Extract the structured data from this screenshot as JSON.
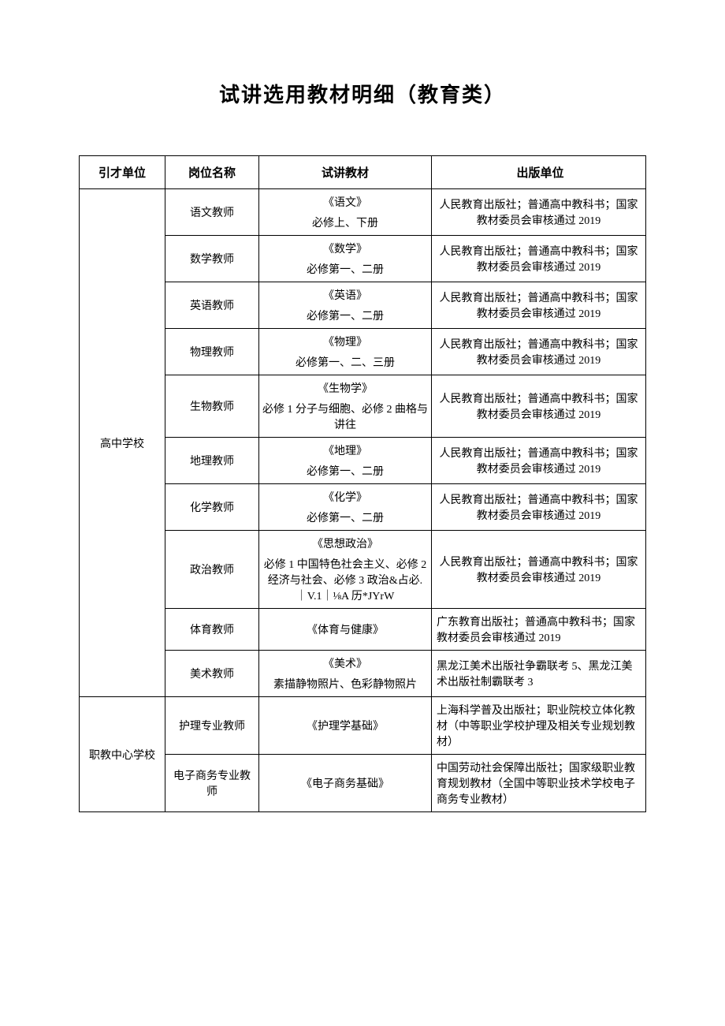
{
  "title": "试讲选用教材明细（教育类）",
  "headers": {
    "unit": "引才单位",
    "position": "岗位名称",
    "material": "试讲教材",
    "publisher": "出版单位"
  },
  "units": {
    "highschool": "高中学校",
    "vocational": "职教中心学校"
  },
  "rows": [
    {
      "position": "语文教师",
      "material_title": "《语文》",
      "material_sub": "必修上、下册",
      "publisher": "人民教育出版社；普通高中教科书；国家教材委员会审核通过 2019"
    },
    {
      "position": "数学教师",
      "material_title": "《数学》",
      "material_sub": "必修第一、二册",
      "publisher": "人民教育出版社；普通高中教科书；国家教材委员会审核通过 2019"
    },
    {
      "position": "英语教师",
      "material_title": "《英语》",
      "material_sub": "必修第一、二册",
      "publisher": "人民教育出版社；普通高中教科书；国家教材委员会审核通过 2019"
    },
    {
      "position": "物理教师",
      "material_title": "《物理》",
      "material_sub": "必修第一、二、三册",
      "publisher": "人民教育出版社；普通高中教科书；国家教材委员会审核通过 2019"
    },
    {
      "position": "生物教师",
      "material_title": "《生物学》",
      "material_sub": "必修 1 分子与细胞、必修 2 曲格与讲往",
      "publisher": "人民教育出版社；普通高中教科书；国家教材委员会审核通过 2019"
    },
    {
      "position": "地理教师",
      "material_title": "《地理》",
      "material_sub": "必修第一、二册",
      "publisher": "人民教育出版社；普通高中教科书；国家教材委员会审核通过 2019"
    },
    {
      "position": "化学教师",
      "material_title": "《化学》",
      "material_sub": "必修第一、二册",
      "publisher": "人民教育出版社；普通高中教科书；国家教材委员会审核通过 2019"
    },
    {
      "position": "政治教师",
      "material_title": "《思想政治》",
      "material_sub": "必修 1 中国特色社会主义、必修 2 经济与社会、必修 3 政治&占必.｜V.1｜⅛A 历*JYrW",
      "publisher": "人民教育出版社；普通高中教科书；国家教材委员会审核通过 2019"
    },
    {
      "position": "体育教师",
      "material_title": "《体育与健康》",
      "material_sub": "",
      "publisher": "广东教育出版社；普通高中教科书；国家教材委员会审核通过 2019"
    },
    {
      "position": "美术教师",
      "material_title": "《美术》",
      "material_sub": "素描静物照片、色彩静物照片",
      "publisher": "黑龙江美术出版社争霸联考 5、黑龙江美术出版社制霸联考 3"
    },
    {
      "position": "护理专业教师",
      "material_title": "《护理学基础》",
      "material_sub": "",
      "publisher": "上海科学普及出版社；职业院校立体化教材（中等职业学校护理及相关专业规划教材）"
    },
    {
      "position": "电子商务专业教师",
      "material_title": "《电子商务基础》",
      "material_sub": "",
      "publisher": "中国劳动社会保障出版社；国家级职业教育规划教材（全国中等职业技术学校电子商务专业教材）"
    }
  ]
}
